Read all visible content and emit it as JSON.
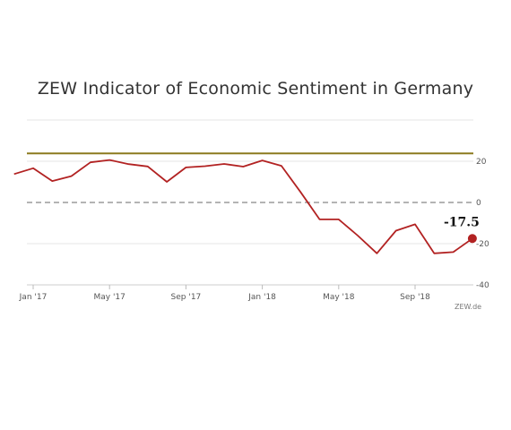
{
  "chart_data": {
    "type": "line",
    "title": "ZEW Indicator of Economic Sentiment in Germany",
    "xlabel": "",
    "ylabel": "",
    "ylim": [
      -40,
      40
    ],
    "y_ticks": [
      20,
      0,
      -20,
      -40
    ],
    "y_tick_labels": [
      "20",
      "0",
      "-20",
      "-40"
    ],
    "x_tick_labels": [
      "Jan '17",
      "May '17",
      "Sep '17",
      "Jan '18",
      "May '18",
      "Sep '18"
    ],
    "x_tick_index": [
      0,
      4,
      8,
      12,
      16,
      20
    ],
    "x": [
      "Dec '16",
      "Jan '17",
      "Feb '17",
      "Mar '17",
      "Apr '17",
      "May '17",
      "Jun '17",
      "Jul '17",
      "Aug '17",
      "Sep '17",
      "Oct '17",
      "Nov '17",
      "Dec '17",
      "Jan '18",
      "Feb '18",
      "Mar '18",
      "Apr '18",
      "May '18",
      "Jun '18",
      "Jul '18",
      "Aug '18",
      "Sep '18",
      "Oct '18",
      "Nov '18",
      "Dec '18"
    ],
    "x_index_start": -1,
    "series": [
      {
        "values": [
          13.8,
          16.6,
          10.4,
          12.8,
          19.5,
          20.6,
          18.6,
          17.5,
          10.0,
          17.0,
          17.6,
          18.7,
          17.4,
          20.4,
          17.8,
          5.1,
          -8.2,
          -8.2,
          -16.1,
          -24.7,
          -13.7,
          -10.6,
          -24.7,
          -24.1,
          -17.5
        ],
        "color": "#b22222"
      }
    ],
    "reference_lines": [
      {
        "value": 23.8,
        "color": "#8c7a1e",
        "style": "solid"
      },
      {
        "value": 0,
        "color": "#888888",
        "style": "dashed"
      }
    ],
    "highlight": {
      "index": 24,
      "label": "-17.5",
      "color": "#b22222"
    },
    "grid": "horizontal",
    "credit": "ZEW.de"
  }
}
